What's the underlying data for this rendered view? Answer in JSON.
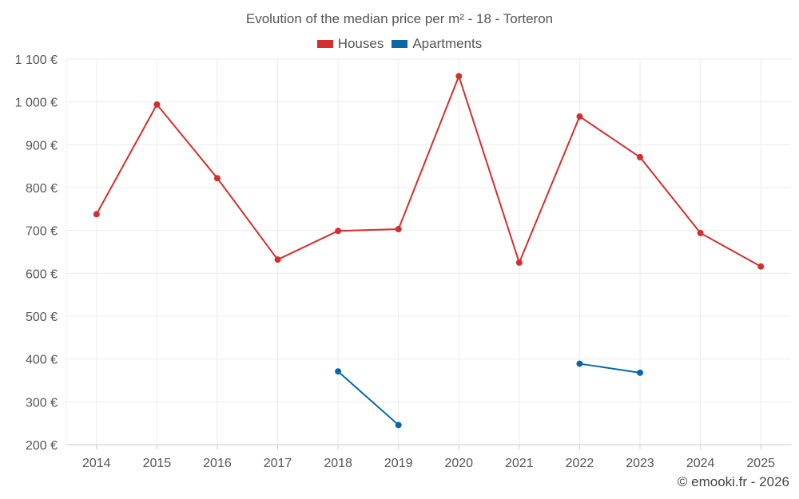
{
  "chart_data": {
    "type": "line",
    "title": "Evolution of the median price per m² - 18 - Torteron",
    "categories": [
      "2014",
      "2015",
      "2016",
      "2017",
      "2018",
      "2019",
      "2020",
      "2021",
      "2022",
      "2023",
      "2024",
      "2025"
    ],
    "series": [
      {
        "name": "Houses",
        "color": "#d32f2f",
        "values": [
          738,
          994,
          822,
          632,
          699,
          703,
          1060,
          625,
          966,
          871,
          694,
          616
        ]
      },
      {
        "name": "Apartments",
        "color": "#0868a6",
        "values": [
          null,
          null,
          null,
          null,
          371,
          246,
          null,
          null,
          389,
          368,
          null,
          null
        ]
      }
    ],
    "ylim": [
      200,
      1100
    ],
    "yticks": [
      200,
      300,
      400,
      500,
      600,
      700,
      800,
      900,
      1000,
      1100
    ],
    "ytick_labels": [
      "200 €",
      "300 €",
      "400 €",
      "500 €",
      "600 €",
      "700 €",
      "800 €",
      "900 €",
      "1 000 €",
      "1 100 €"
    ],
    "xlabel": "",
    "ylabel": "",
    "grid": true,
    "legend_position": "top-center"
  },
  "credit": "© emooki.fr - 2026"
}
